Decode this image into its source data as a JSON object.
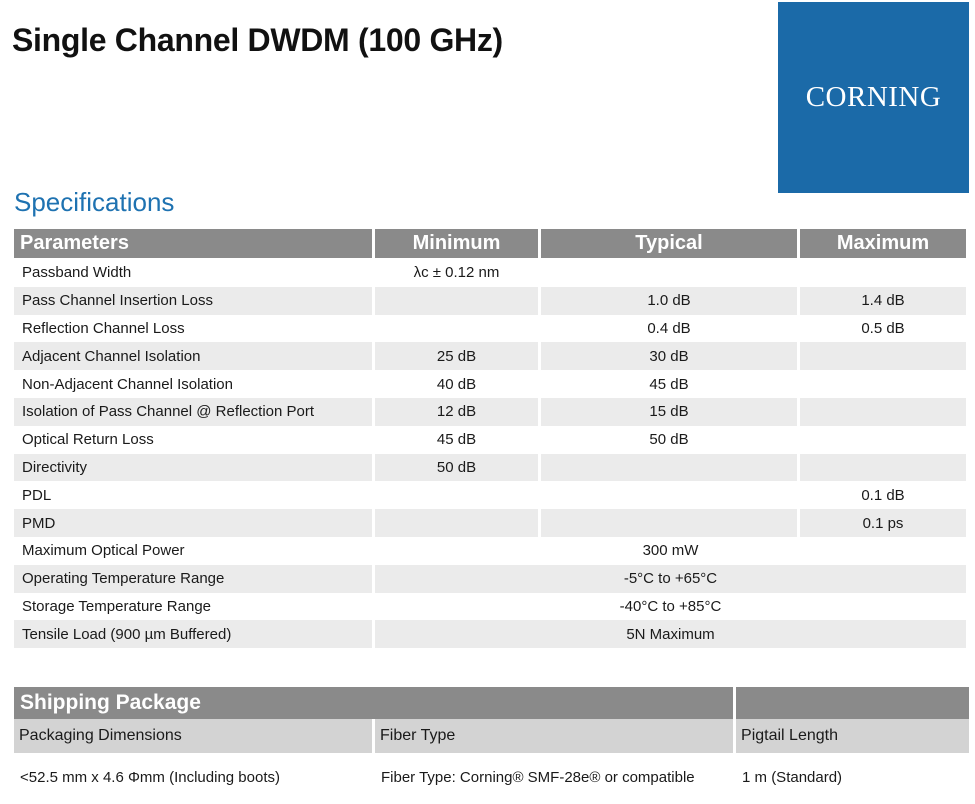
{
  "title": "Single Channel DWDM (100 GHz)",
  "logo_text": "CORNING",
  "section_title": "Specifications",
  "colors": {
    "logo_bg": "#1b6aa8",
    "header_bg": "#8a8a8a",
    "section_title": "#1e72b1",
    "row_shade": "#ebebeb"
  },
  "spec_table": {
    "headers": [
      "Parameters",
      "Minimum",
      "Typical",
      "Maximum"
    ],
    "rows": [
      {
        "param": "Passband Width",
        "min": "λc ± 0.12 nm",
        "typ": "",
        "max": ""
      },
      {
        "param": "Pass Channel Insertion Loss",
        "min": "",
        "typ": "1.0 dB",
        "max": "1.4 dB"
      },
      {
        "param": "Reflection Channel Loss",
        "min": "",
        "typ": "0.4 dB",
        "max": "0.5 dB"
      },
      {
        "param": "Adjacent Channel Isolation",
        "min": "25 dB",
        "typ": "30 dB",
        "max": ""
      },
      {
        "param": "Non-Adjacent Channel Isolation",
        "min": "40 dB",
        "typ": "45 dB",
        "max": ""
      },
      {
        "param": "Isolation of Pass Channel @ Reflection Port",
        "min": "12 dB",
        "typ": "15 dB",
        "max": ""
      },
      {
        "param": "Optical Return Loss",
        "min": "45 dB",
        "typ": "50 dB",
        "max": ""
      },
      {
        "param": "Directivity",
        "min": "50 dB",
        "typ": "",
        "max": ""
      },
      {
        "param": "PDL",
        "min": "",
        "typ": "",
        "max": "0.1 dB"
      },
      {
        "param": "PMD",
        "min": "",
        "typ": "",
        "max": "0.1 ps"
      },
      {
        "param": "Maximum Optical Power",
        "span": "300 mW"
      },
      {
        "param": "Operating Temperature Range",
        "span": "-5°C to +65°C"
      },
      {
        "param": "Storage Temperature Range",
        "span": "-40°C to +85°C"
      },
      {
        "param": "Tensile Load (900 µm Buffered)",
        "span": "5N Maximum"
      }
    ]
  },
  "shipping": {
    "title": "Shipping Package",
    "headers": [
      "Packaging Dimensions",
      "Fiber Type",
      "Pigtail Length"
    ],
    "values": [
      "<52.5 mm x 4.6 Φmm (Including boots)",
      "Fiber Type: Corning® SMF-28e® or compatible",
      "1 m (Standard)"
    ]
  }
}
